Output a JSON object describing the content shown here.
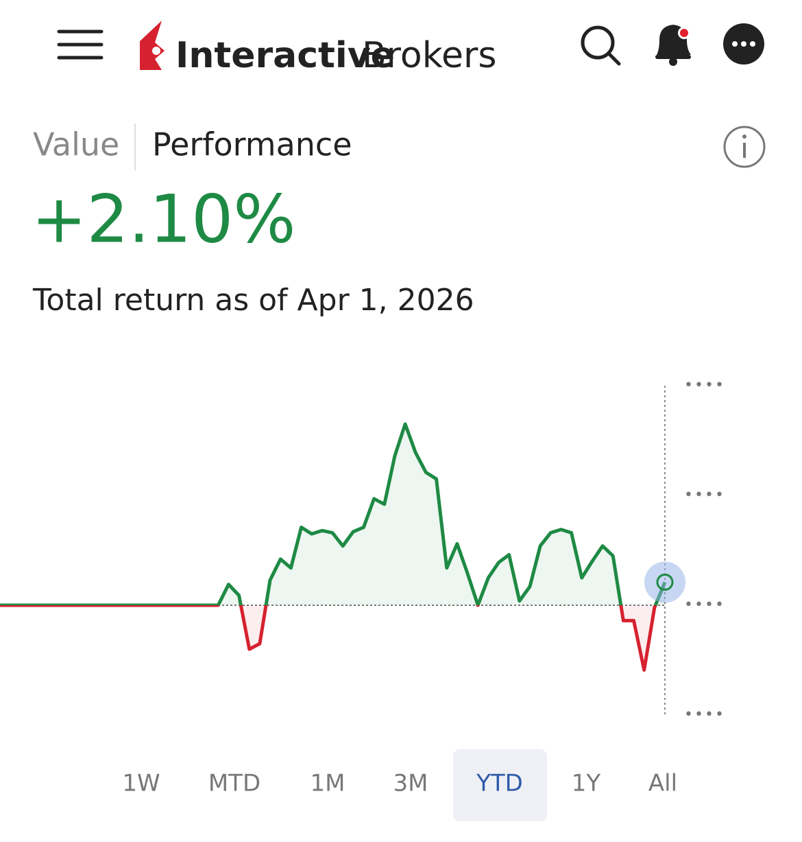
{
  "header": {
    "brand_bold": "Interactive",
    "brand_light": "Brokers"
  },
  "tabs": [
    "Value",
    "Performance"
  ],
  "headline": "+2.10%",
  "subtitle": "Total return as of Apr 1, 2026",
  "ranges": {
    "options": [
      "1W",
      "MTD",
      "1M",
      "3M",
      "YTD",
      "1Y",
      "All"
    ],
    "selected": 4
  },
  "chart_data": {
    "type": "line",
    "series": [
      {
        "color": "#1e8a44",
        "negative_color": "#d62230",
        "values": [
          0,
          0,
          0,
          0,
          0,
          0,
          0,
          0,
          0,
          0,
          0,
          0,
          0,
          0,
          0,
          0,
          0,
          0,
          0,
          0,
          0,
          0,
          1.9,
          0.9,
          -4.0,
          -3.5,
          2.3,
          4.2,
          3.4,
          7.1,
          6.5,
          6.8,
          6.6,
          5.4,
          6.7,
          7.1,
          9.7,
          9.2,
          13.6,
          16.5,
          13.9,
          12.1,
          11.5,
          3.4,
          5.6,
          2.9,
          0,
          2.5,
          3.9,
          4.6,
          0.4,
          1.7,
          5.4,
          6.6,
          6.9,
          6.6,
          2.5,
          4.0,
          5.4,
          4.5,
          -1.4,
          -1.4,
          -5.9,
          -0.2,
          2.1
        ]
      }
    ],
    "ylim": [
      -10,
      20
    ],
    "yticks": [
      {
        "value": -10,
        "label": "••••"
      },
      {
        "value": 0,
        "label": "••••"
      },
      {
        "value": 10,
        "label": "••••"
      },
      {
        "value": 20,
        "label": "••••"
      }
    ]
  }
}
